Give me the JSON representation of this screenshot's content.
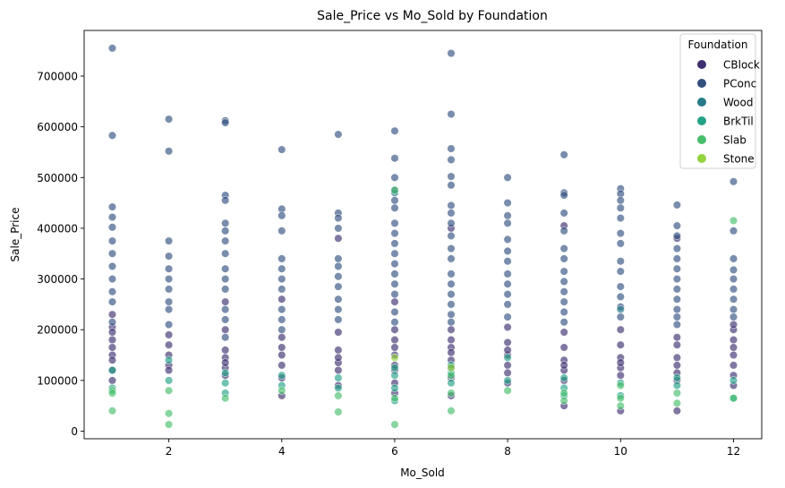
{
  "chart_data": {
    "type": "scatter",
    "title": "Sale_Price vs Mo_Sold by Foundation",
    "xlabel": "Mo_Sold",
    "ylabel": "Sale_Price",
    "xlim": [
      0.5,
      12.5
    ],
    "ylim": [
      -15000,
      790000
    ],
    "xticks": [
      2,
      4,
      6,
      8,
      10,
      12
    ],
    "yticks": [
      0,
      100000,
      200000,
      300000,
      400000,
      500000,
      600000,
      700000
    ],
    "grid": false,
    "legend": {
      "title": "Foundation",
      "placement": "top-right",
      "entries": [
        {
          "name": "CBlock",
          "color": "#3e2f70"
        },
        {
          "name": "PConc",
          "color": "#31507f"
        },
        {
          "name": "Wood",
          "color": "#267a88"
        },
        {
          "name": "BrkTil",
          "color": "#23a287"
        },
        {
          "name": "Slab",
          "color": "#47be6b"
        },
        {
          "name": "Stone",
          "color": "#93d33e"
        }
      ]
    },
    "series": [
      {
        "name": "CBlock",
        "points": [
          [
            1,
            180000
          ],
          [
            1,
            150000
          ],
          [
            1,
            140000
          ],
          [
            1,
            230000
          ],
          [
            1,
            120000
          ],
          [
            1,
            205000
          ],
          [
            1,
            165000
          ],
          [
            1,
            100000
          ],
          [
            1,
            195000
          ],
          [
            2,
            130000
          ],
          [
            2,
            170000
          ],
          [
            2,
            150000
          ],
          [
            2,
            120000
          ],
          [
            2,
            190000
          ],
          [
            3,
            110000
          ],
          [
            3,
            145000
          ],
          [
            3,
            160000
          ],
          [
            3,
            200000
          ],
          [
            3,
            125000
          ],
          [
            3,
            255000
          ],
          [
            3,
            135000
          ],
          [
            4,
            130000
          ],
          [
            4,
            70000
          ],
          [
            4,
            150000
          ],
          [
            4,
            185000
          ],
          [
            4,
            165000
          ],
          [
            4,
            260000
          ],
          [
            4,
            105000
          ],
          [
            5,
            135000
          ],
          [
            5,
            90000
          ],
          [
            5,
            160000
          ],
          [
            5,
            195000
          ],
          [
            5,
            120000
          ],
          [
            5,
            380000
          ],
          [
            5,
            145000
          ],
          [
            6,
            120000
          ],
          [
            6,
            75000
          ],
          [
            6,
            150000
          ],
          [
            6,
            180000
          ],
          [
            6,
            95000
          ],
          [
            6,
            200000
          ],
          [
            6,
            165000
          ],
          [
            6,
            130000
          ],
          [
            6,
            255000
          ],
          [
            7,
            140000
          ],
          [
            7,
            70000
          ],
          [
            7,
            165000
          ],
          [
            7,
            200000
          ],
          [
            7,
            105000
          ],
          [
            7,
            180000
          ],
          [
            7,
            125000
          ],
          [
            7,
            400000
          ],
          [
            7,
            155000
          ],
          [
            8,
            130000
          ],
          [
            8,
            95000
          ],
          [
            8,
            150000
          ],
          [
            8,
            175000
          ],
          [
            8,
            115000
          ],
          [
            8,
            205000
          ],
          [
            8,
            160000
          ],
          [
            9,
            120000
          ],
          [
            9,
            50000
          ],
          [
            9,
            140000
          ],
          [
            9,
            165000
          ],
          [
            9,
            100000
          ],
          [
            9,
            195000
          ],
          [
            9,
            405000
          ],
          [
            9,
            130000
          ],
          [
            10,
            125000
          ],
          [
            10,
            40000
          ],
          [
            10,
            145000
          ],
          [
            10,
            170000
          ],
          [
            10,
            110000
          ],
          [
            10,
            200000
          ],
          [
            10,
            135000
          ],
          [
            11,
            115000
          ],
          [
            11,
            40000
          ],
          [
            11,
            145000
          ],
          [
            11,
            170000
          ],
          [
            11,
            100000
          ],
          [
            11,
            185000
          ],
          [
            11,
            130000
          ],
          [
            11,
            380000
          ],
          [
            12,
            130000
          ],
          [
            12,
            90000
          ],
          [
            12,
            150000
          ],
          [
            12,
            180000
          ],
          [
            12,
            110000
          ],
          [
            12,
            200000
          ],
          [
            12,
            165000
          ],
          [
            12,
            210000
          ]
        ]
      },
      {
        "name": "PConc",
        "points": [
          [
            1,
            755000
          ],
          [
            1,
            583000
          ],
          [
            1,
            442000
          ],
          [
            1,
            422000
          ],
          [
            1,
            402000
          ],
          [
            1,
            375000
          ],
          [
            1,
            350000
          ],
          [
            1,
            325000
          ],
          [
            1,
            300000
          ],
          [
            1,
            275000
          ],
          [
            1,
            255000
          ],
          [
            1,
            215000
          ],
          [
            2,
            615000
          ],
          [
            2,
            552000
          ],
          [
            2,
            375000
          ],
          [
            2,
            345000
          ],
          [
            2,
            320000
          ],
          [
            2,
            300000
          ],
          [
            2,
            280000
          ],
          [
            2,
            255000
          ],
          [
            2,
            240000
          ],
          [
            2,
            210000
          ],
          [
            3,
            612000
          ],
          [
            3,
            608000
          ],
          [
            3,
            465000
          ],
          [
            3,
            455000
          ],
          [
            3,
            410000
          ],
          [
            3,
            395000
          ],
          [
            3,
            375000
          ],
          [
            3,
            350000
          ],
          [
            3,
            320000
          ],
          [
            3,
            300000
          ],
          [
            3,
            280000
          ],
          [
            3,
            240000
          ],
          [
            3,
            220000
          ],
          [
            3,
            185000
          ],
          [
            4,
            555000
          ],
          [
            4,
            438000
          ],
          [
            4,
            425000
          ],
          [
            4,
            395000
          ],
          [
            4,
            340000
          ],
          [
            4,
            320000
          ],
          [
            4,
            300000
          ],
          [
            4,
            280000
          ],
          [
            4,
            240000
          ],
          [
            4,
            220000
          ],
          [
            4,
            200000
          ],
          [
            5,
            585000
          ],
          [
            5,
            430000
          ],
          [
            5,
            420000
          ],
          [
            5,
            400000
          ],
          [
            5,
            340000
          ],
          [
            5,
            325000
          ],
          [
            5,
            305000
          ],
          [
            5,
            285000
          ],
          [
            5,
            260000
          ],
          [
            5,
            240000
          ],
          [
            5,
            220000
          ],
          [
            6,
            592000
          ],
          [
            6,
            538000
          ],
          [
            6,
            500000
          ],
          [
            6,
            475000
          ],
          [
            6,
            455000
          ],
          [
            6,
            440000
          ],
          [
            6,
            410000
          ],
          [
            6,
            390000
          ],
          [
            6,
            370000
          ],
          [
            6,
            350000
          ],
          [
            6,
            330000
          ],
          [
            6,
            310000
          ],
          [
            6,
            290000
          ],
          [
            6,
            270000
          ],
          [
            6,
            235000
          ],
          [
            6,
            215000
          ],
          [
            7,
            745000
          ],
          [
            7,
            625000
          ],
          [
            7,
            557000
          ],
          [
            7,
            535000
          ],
          [
            7,
            502000
          ],
          [
            7,
            485000
          ],
          [
            7,
            445000
          ],
          [
            7,
            430000
          ],
          [
            7,
            410000
          ],
          [
            7,
            385000
          ],
          [
            7,
            360000
          ],
          [
            7,
            340000
          ],
          [
            7,
            310000
          ],
          [
            7,
            290000
          ],
          [
            7,
            270000
          ],
          [
            7,
            250000
          ],
          [
            7,
            230000
          ],
          [
            7,
            215000
          ],
          [
            8,
            500000
          ],
          [
            8,
            450000
          ],
          [
            8,
            425000
          ],
          [
            8,
            410000
          ],
          [
            8,
            378000
          ],
          [
            8,
            355000
          ],
          [
            8,
            335000
          ],
          [
            8,
            310000
          ],
          [
            8,
            290000
          ],
          [
            8,
            270000
          ],
          [
            8,
            250000
          ],
          [
            8,
            225000
          ],
          [
            9,
            545000
          ],
          [
            9,
            470000
          ],
          [
            9,
            465000
          ],
          [
            9,
            430000
          ],
          [
            9,
            395000
          ],
          [
            9,
            360000
          ],
          [
            9,
            340000
          ],
          [
            9,
            315000
          ],
          [
            9,
            295000
          ],
          [
            9,
            275000
          ],
          [
            9,
            255000
          ],
          [
            9,
            235000
          ],
          [
            9,
            215000
          ],
          [
            10,
            478000
          ],
          [
            10,
            468000
          ],
          [
            10,
            455000
          ],
          [
            10,
            440000
          ],
          [
            10,
            420000
          ],
          [
            10,
            390000
          ],
          [
            10,
            370000
          ],
          [
            10,
            335000
          ],
          [
            10,
            315000
          ],
          [
            10,
            285000
          ],
          [
            10,
            265000
          ],
          [
            10,
            245000
          ],
          [
            10,
            225000
          ],
          [
            11,
            446000
          ],
          [
            11,
            405000
          ],
          [
            11,
            385000
          ],
          [
            11,
            360000
          ],
          [
            11,
            340000
          ],
          [
            11,
            320000
          ],
          [
            11,
            300000
          ],
          [
            11,
            280000
          ],
          [
            11,
            260000
          ],
          [
            11,
            240000
          ],
          [
            11,
            225000
          ],
          [
            11,
            210000
          ],
          [
            12,
            492000
          ],
          [
            12,
            395000
          ],
          [
            12,
            340000
          ],
          [
            12,
            318000
          ],
          [
            12,
            300000
          ],
          [
            12,
            280000
          ],
          [
            12,
            260000
          ],
          [
            12,
            240000
          ],
          [
            12,
            225000
          ]
        ]
      },
      {
        "name": "Wood",
        "points": [
          [
            6,
            470000
          ],
          [
            10,
            240000
          ]
        ]
      },
      {
        "name": "BrkTil",
        "points": [
          [
            1,
            120000
          ],
          [
            1,
            85000
          ],
          [
            2,
            140000
          ],
          [
            2,
            100000
          ],
          [
            3,
            95000
          ],
          [
            3,
            115000
          ],
          [
            3,
            75000
          ],
          [
            4,
            90000
          ],
          [
            4,
            110000
          ],
          [
            5,
            105000
          ],
          [
            5,
            85000
          ],
          [
            6,
            110000
          ],
          [
            6,
            85000
          ],
          [
            6,
            125000
          ],
          [
            6,
            60000
          ],
          [
            7,
            115000
          ],
          [
            7,
            95000
          ],
          [
            7,
            130000
          ],
          [
            8,
            100000
          ],
          [
            8,
            145000
          ],
          [
            9,
            85000
          ],
          [
            9,
            105000
          ],
          [
            9,
            70000
          ],
          [
            10,
            95000
          ],
          [
            10,
            70000
          ],
          [
            11,
            90000
          ],
          [
            11,
            105000
          ],
          [
            12,
            100000
          ],
          [
            12,
            65000
          ]
        ]
      },
      {
        "name": "Slab",
        "points": [
          [
            1,
            40000
          ],
          [
            1,
            80000
          ],
          [
            1,
            75000
          ],
          [
            2,
            35000
          ],
          [
            2,
            13000
          ],
          [
            2,
            80000
          ],
          [
            3,
            65000
          ],
          [
            4,
            80000
          ],
          [
            5,
            38000
          ],
          [
            5,
            70000
          ],
          [
            6,
            475000
          ],
          [
            6,
            13000
          ],
          [
            6,
            65000
          ],
          [
            7,
            40000
          ],
          [
            7,
            75000
          ],
          [
            7,
            110000
          ],
          [
            8,
            80000
          ],
          [
            9,
            60000
          ],
          [
            9,
            75000
          ],
          [
            10,
            65000
          ],
          [
            10,
            50000
          ],
          [
            10,
            90000
          ],
          [
            11,
            55000
          ],
          [
            11,
            75000
          ],
          [
            12,
            415000
          ],
          [
            12,
            65000
          ]
        ]
      },
      {
        "name": "Stone",
        "points": [
          [
            6,
            145000
          ],
          [
            7,
            125000
          ]
        ]
      }
    ]
  }
}
